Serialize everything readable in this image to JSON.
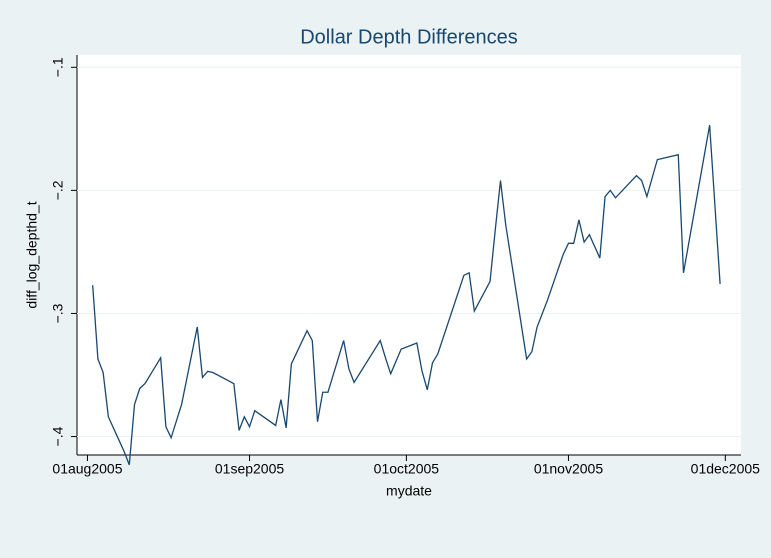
{
  "chart_data": {
    "type": "line",
    "title": "Dollar Depth Differences",
    "x_label": "mydate",
    "y_label": "diff_log_depthd_t",
    "x": [
      "2005-08-02",
      "2005-08-03",
      "2005-08-04",
      "2005-08-05",
      "2005-08-08",
      "2005-08-09",
      "2005-08-10",
      "2005-08-11",
      "2005-08-12",
      "2005-08-15",
      "2005-08-16",
      "2005-08-17",
      "2005-08-19",
      "2005-08-22",
      "2005-08-23",
      "2005-08-24",
      "2005-08-25",
      "2005-08-29",
      "2005-08-30",
      "2005-08-31",
      "2005-09-01",
      "2005-09-02",
      "2005-09-06",
      "2005-09-07",
      "2005-09-08",
      "2005-09-09",
      "2005-09-12",
      "2005-09-13",
      "2005-09-14",
      "2005-09-15",
      "2005-09-16",
      "2005-09-19",
      "2005-09-20",
      "2005-09-21",
      "2005-09-26",
      "2005-09-27",
      "2005-09-28",
      "2005-09-30",
      "2005-10-03",
      "2005-10-04",
      "2005-10-05",
      "2005-10-06",
      "2005-10-07",
      "2005-10-12",
      "2005-10-13",
      "2005-10-14",
      "2005-10-17",
      "2005-10-18",
      "2005-10-19",
      "2005-10-20",
      "2005-10-24",
      "2005-10-25",
      "2005-10-26",
      "2005-10-28",
      "2005-10-31",
      "2005-11-01",
      "2005-11-02",
      "2005-11-03",
      "2005-11-04",
      "2005-11-05",
      "2005-11-07",
      "2005-11-08",
      "2005-11-09",
      "2005-11-10",
      "2005-11-14",
      "2005-11-15",
      "2005-11-16",
      "2005-11-18",
      "2005-11-22",
      "2005-11-23",
      "2005-11-28",
      "2005-11-30"
    ],
    "series": [
      {
        "name": "diff_log_depthd_t",
        "color": "#1a476f",
        "values": [
          -0.277,
          -0.337,
          -0.348,
          -0.384,
          -0.412,
          -0.423,
          -0.374,
          -0.361,
          -0.357,
          -0.336,
          -0.392,
          -0.401,
          -0.374,
          -0.311,
          -0.352,
          -0.347,
          -0.348,
          -0.357,
          -0.395,
          -0.384,
          -0.392,
          -0.379,
          -0.391,
          -0.37,
          -0.393,
          -0.341,
          -0.314,
          -0.322,
          -0.388,
          -0.364,
          -0.364,
          -0.322,
          -0.345,
          -0.356,
          -0.322,
          -0.336,
          -0.349,
          -0.329,
          -0.324,
          -0.347,
          -0.362,
          -0.34,
          -0.333,
          -0.269,
          -0.267,
          -0.298,
          -0.274,
          -0.232,
          -0.192,
          -0.228,
          -0.337,
          -0.331,
          -0.311,
          -0.289,
          -0.252,
          -0.243,
          -0.243,
          -0.224,
          -0.242,
          -0.236,
          -0.255,
          -0.205,
          -0.2,
          -0.206,
          -0.188,
          -0.192,
          -0.205,
          -0.175,
          -0.171,
          -0.267,
          -0.147,
          -0.276
        ]
      }
    ],
    "xlim": [
      "2005-07-30",
      "2005-12-04"
    ],
    "xticks": [
      {
        "value": "2005-08-01",
        "label": "01aug2005"
      },
      {
        "value": "2005-09-01",
        "label": "01sep2005"
      },
      {
        "value": "2005-10-01",
        "label": "01oct2005"
      },
      {
        "value": "2005-11-01",
        "label": "01nov2005"
      },
      {
        "value": "2005-12-01",
        "label": "01dec2005"
      }
    ],
    "ylim": [
      -0.415,
      -0.09
    ],
    "yticks": [
      {
        "value": -0.4,
        "label": "−.4"
      },
      {
        "value": -0.3,
        "label": "−.3"
      },
      {
        "value": -0.2,
        "label": "−.2"
      },
      {
        "value": -0.1,
        "label": "−.1"
      }
    ],
    "grid": true
  }
}
